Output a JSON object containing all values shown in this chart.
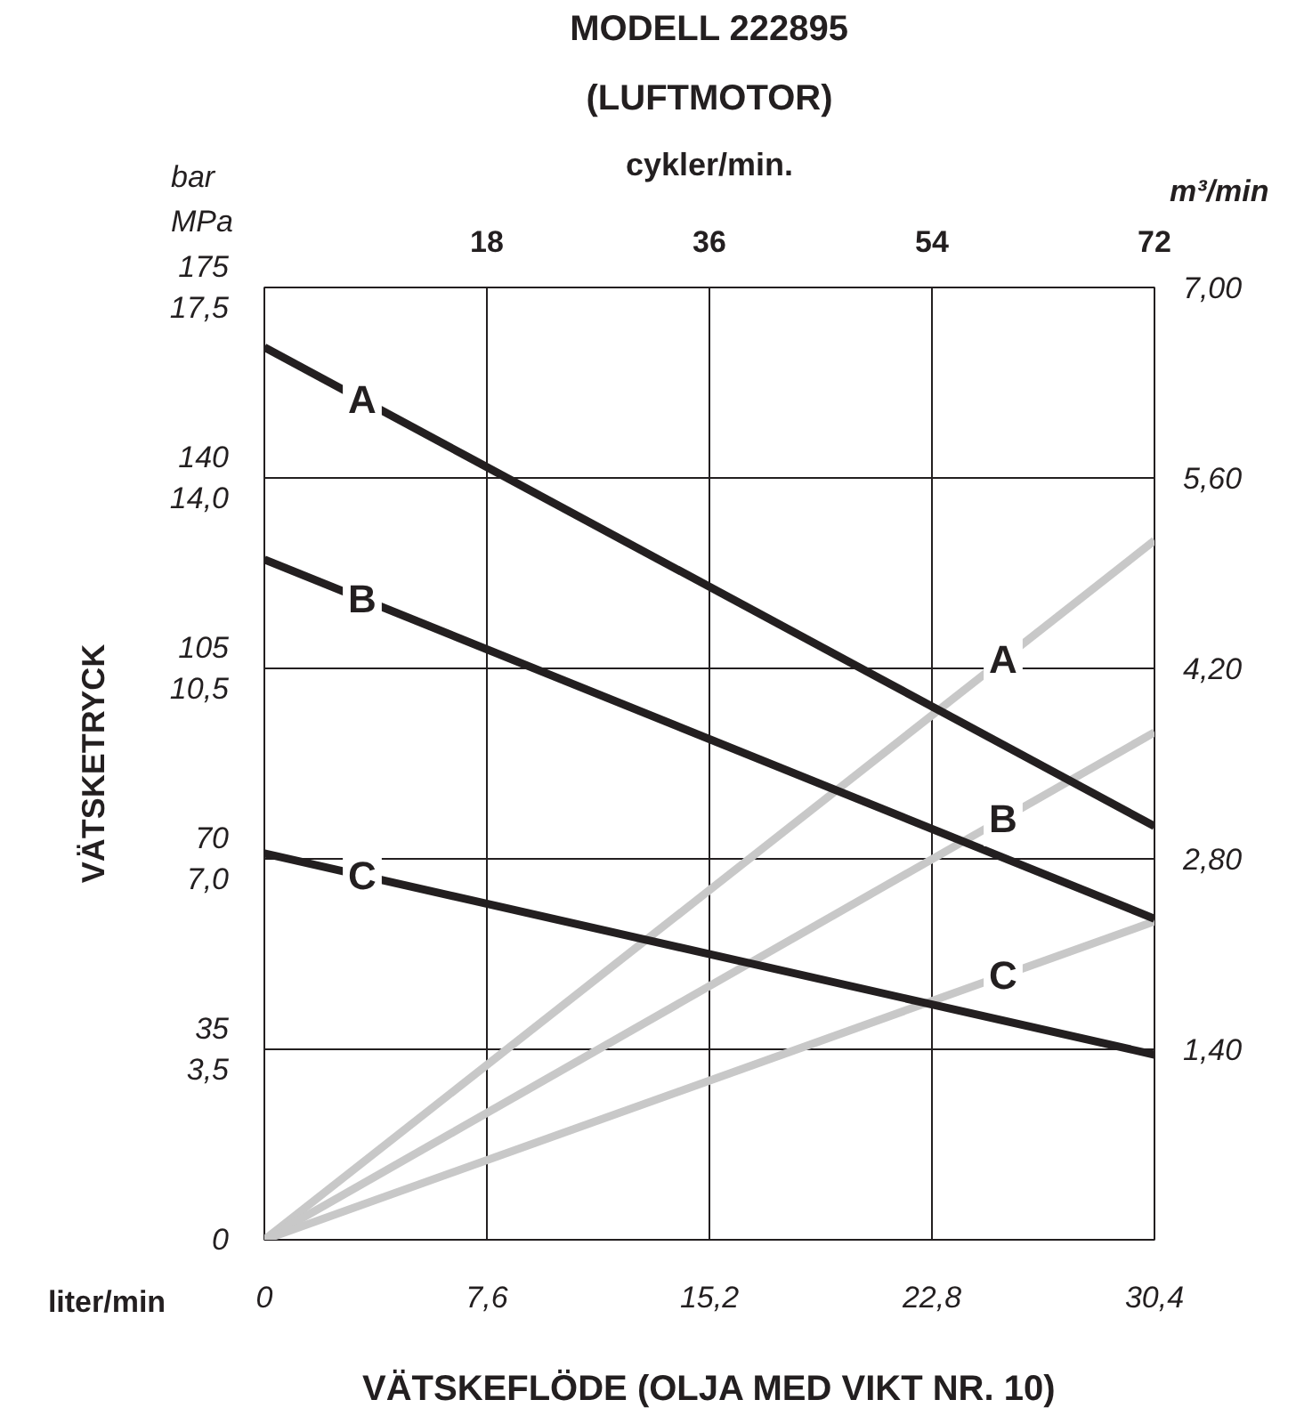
{
  "chart_data": {
    "type": "line",
    "title": "MODELL 222895",
    "subtitle": "(LUFTMOTOR)",
    "xlabel": "VÄTSKEFLÖDE (OLJA MED VIKT NR. 10)",
    "ylabel": "VÄTSKETRYCK",
    "y2label": "m³/min",
    "x2label": "cykler/min.",
    "annotations": [
      "bar",
      "MPa",
      "liter/min"
    ],
    "x": [
      0,
      30.4
    ],
    "series": [
      {
        "name": "A",
        "color": "#c8c8c8",
        "values": [
          0,
          5.14
        ],
        "axis": "y2"
      },
      {
        "name": "B",
        "color": "#c8c8c8",
        "values": [
          0,
          3.73
        ],
        "axis": "y2"
      },
      {
        "name": "C",
        "color": "#c8c8c8",
        "values": [
          0,
          2.34
        ],
        "axis": "y2"
      },
      {
        "name": "A",
        "color": "#231f20",
        "values": [
          164,
          76
        ]
      },
      {
        "name": "B",
        "color": "#231f20",
        "values": [
          125,
          59
        ]
      },
      {
        "name": "C",
        "color": "#231f20",
        "values": [
          71,
          34
        ]
      }
    ],
    "xlim": [
      0,
      30.4
    ],
    "xticks": [
      0,
      {
        "value": 7.6,
        "label": "7,6"
      },
      {
        "value": 15.2,
        "label": "15,2"
      },
      {
        "value": 22.8,
        "label": "22,8"
      },
      {
        "value": 30.4,
        "label": "30,4"
      }
    ],
    "x2lim": [
      0,
      72
    ],
    "x2ticks": [
      18,
      36,
      54,
      72
    ],
    "ylim": [
      0,
      175
    ],
    "yticks": [
      0,
      35,
      70,
      105,
      140,
      175
    ],
    "y3lim": [
      0,
      17.5
    ],
    "y3ticks": [
      {
        "value": 3.5,
        "label": "3,5"
      },
      {
        "value": 7.0,
        "label": "7,0"
      },
      {
        "value": 10.5,
        "label": "10,5"
      },
      {
        "value": 14.0,
        "label": "14,0"
      },
      {
        "value": 17.5,
        "label": "17,5"
      }
    ],
    "y2lim": [
      0,
      7
    ],
    "y2ticks": [
      {
        "value": 1.4,
        "label": "1,40"
      },
      {
        "value": 2.8,
        "label": "2,80"
      },
      {
        "value": 4.2,
        "label": "4,20"
      },
      {
        "value": 5.6,
        "label": "5,60"
      },
      {
        "value": 7,
        "label": "7,00"
      }
    ],
    "grid": true
  }
}
